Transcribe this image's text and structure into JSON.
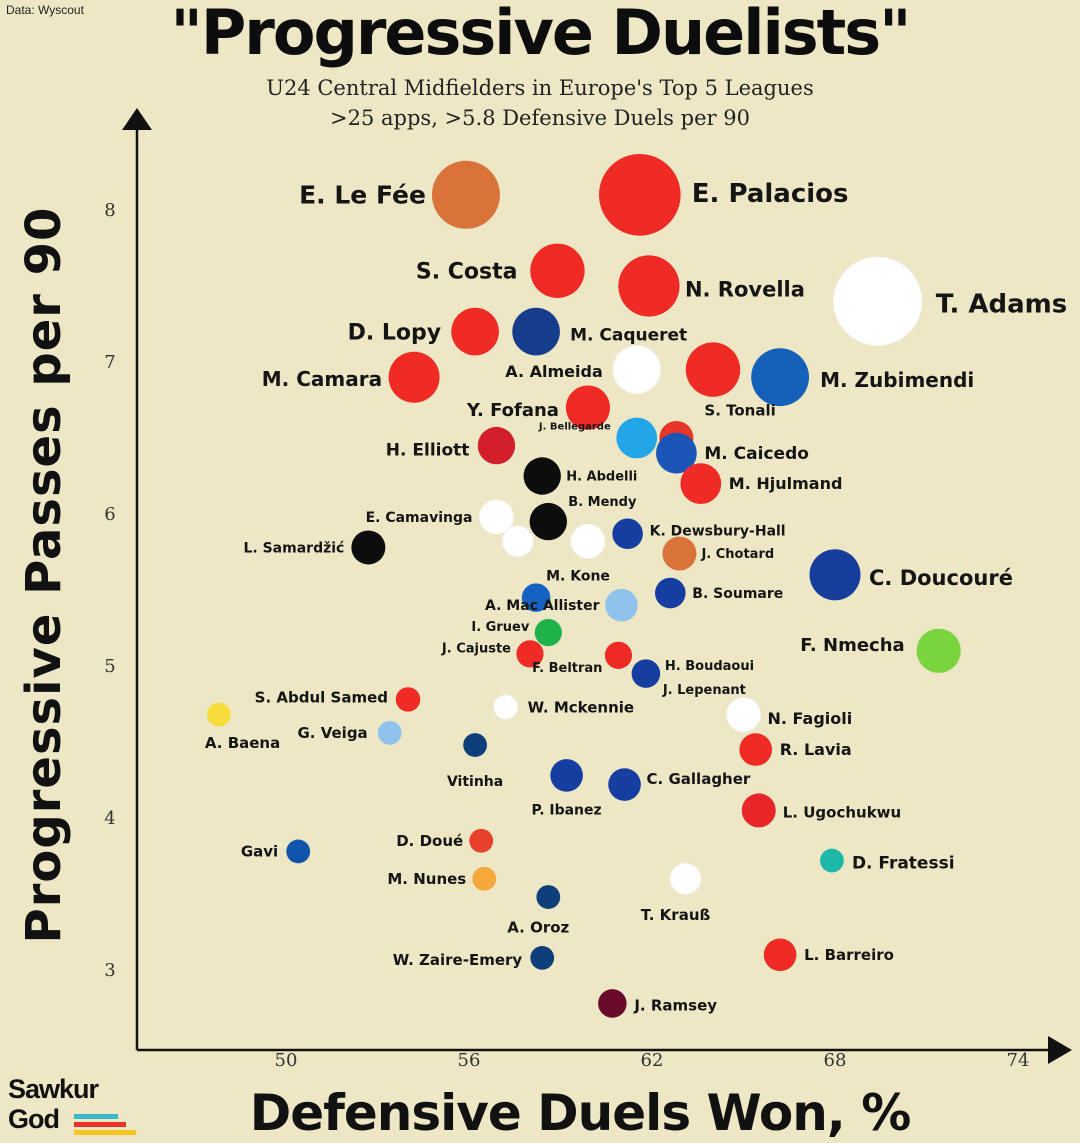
{
  "source": "Data: Wyscout",
  "logo": {
    "line1": "Sawkur",
    "line2": "God"
  },
  "chart_data": {
    "type": "scatter",
    "title": "\"Progressive Duelists\"",
    "subtitle": [
      "U24 Central Midfielders in Europe's Top 5 Leagues",
      ">25 apps, >5.8 Defensive Duels per 90"
    ],
    "xlabel": "Defensive Duels Won, %",
    "ylabel": "Progressive Passes per 90",
    "xlim": [
      45,
      74
    ],
    "ylim": [
      2.6,
      8.9
    ],
    "xticks": [
      50,
      56,
      62,
      68,
      74
    ],
    "yticks": [
      3,
      4,
      5,
      6,
      7,
      8
    ],
    "grid": false,
    "points": [
      {
        "name": "E. Le Fée",
        "x": 55.9,
        "y": 8.1,
        "color": "#d9733a",
        "size": 10
      },
      {
        "name": "E. Palacios",
        "x": 61.6,
        "y": 8.1,
        "color": "#f02a24",
        "size": 12
      },
      {
        "name": "S. Costa",
        "x": 58.9,
        "y": 7.6,
        "color": "#f02a24",
        "size": 8
      },
      {
        "name": "N. Rovella",
        "x": 61.9,
        "y": 7.5,
        "color": "#f02a24",
        "size": 9
      },
      {
        "name": "T. Adams",
        "x": 69.4,
        "y": 7.4,
        "color": "#ffffff",
        "size": 13
      },
      {
        "name": "D. Lopy",
        "x": 56.2,
        "y": 7.2,
        "color": "#f02a24",
        "size": 7
      },
      {
        "name": "M. Caqueret",
        "x": 58.2,
        "y": 7.2,
        "color": "#163c8c",
        "size": 7
      },
      {
        "name": "A. Almeida",
        "x": 61.5,
        "y": 6.95,
        "color": "#ffffff",
        "size": 7
      },
      {
        "name": "M. Camara",
        "x": 54.2,
        "y": 6.9,
        "color": "#f02a24",
        "size": 7.5
      },
      {
        "name": "",
        "x": 64.0,
        "y": 6.95,
        "color": "#f02a24",
        "size": 8
      },
      {
        "name": "M. Zubimendi",
        "x": 66.2,
        "y": 6.9,
        "color": "#1560b8",
        "size": 8.5
      },
      {
        "name": "Y. Fofana",
        "x": 59.9,
        "y": 6.7,
        "color": "#f02a24",
        "size": 6.5
      },
      {
        "name": "J. Bellegarde",
        "x": 61.5,
        "y": 6.5,
        "color": "#23a6e8",
        "size": 6
      },
      {
        "name": "S. Tonali",
        "x": 62.8,
        "y": 6.5,
        "color": "#e8352a",
        "size": 5
      },
      {
        "name": "M. Caicedo",
        "x": 62.8,
        "y": 6.4,
        "color": "#1c55b8",
        "size": 6
      },
      {
        "name": "H. Elliott",
        "x": 56.9,
        "y": 6.45,
        "color": "#d21f2a",
        "size": 5.5
      },
      {
        "name": "H. Abdelli",
        "x": 58.4,
        "y": 6.25,
        "color": "#0d0d0d",
        "size": 5.5
      },
      {
        "name": "M. Hjulmand",
        "x": 63.6,
        "y": 6.2,
        "color": "#f02a24",
        "size": 6
      },
      {
        "name": "B. Mendy",
        "x": 58.6,
        "y": 5.95,
        "color": "#0d0d0d",
        "size": 5.5
      },
      {
        "name": "E. Camavinga",
        "x": 56.9,
        "y": 5.98,
        "color": "#ffffff",
        "size": 5
      },
      {
        "name": "",
        "x": 57.6,
        "y": 5.82,
        "color": "#ffffff",
        "size": 4.5
      },
      {
        "name": "",
        "x": 59.9,
        "y": 5.82,
        "color": "#ffffff",
        "size": 5
      },
      {
        "name": "K. Dewsbury-Hall",
        "x": 61.2,
        "y": 5.87,
        "color": "#163ea0",
        "size": 4.5
      },
      {
        "name": "L. Samardžić",
        "x": 52.7,
        "y": 5.78,
        "color": "#0d0d0d",
        "size": 5
      },
      {
        "name": "J. Chotard",
        "x": 62.9,
        "y": 5.74,
        "color": "#d9733a",
        "size": 5
      },
      {
        "name": "C. Doucouré",
        "x": 68.0,
        "y": 5.6,
        "color": "#163c9c",
        "size": 7.5
      },
      {
        "name": "M. Kone",
        "x": 58.2,
        "y": 5.45,
        "color": "#1562c0",
        "size": 4.2
      },
      {
        "name": "B. Soumare",
        "x": 62.6,
        "y": 5.48,
        "color": "#163ea0",
        "size": 4.5
      },
      {
        "name": "A. Mac Allister",
        "x": 61.0,
        "y": 5.4,
        "color": "#8fc3ed",
        "size": 4.8
      },
      {
        "name": "I. Gruev",
        "x": 58.6,
        "y": 5.22,
        "color": "#1fb24a",
        "size": 4
      },
      {
        "name": "F. Beltran",
        "x": 60.9,
        "y": 5.07,
        "color": "#f02a24",
        "size": 4
      },
      {
        "name": "F. Nmecha",
        "x": 71.4,
        "y": 5.1,
        "color": "#7ad43e",
        "size": 6.5
      },
      {
        "name": "J. Cajuste",
        "x": 58.0,
        "y": 5.08,
        "color": "#f02a24",
        "size": 4
      },
      {
        "name": "H. Boudaoui",
        "x": 61.8,
        "y": 4.95,
        "color": "#163ea0",
        "size": 4.2
      },
      {
        "name": "J. Lepenant",
        "x": 61.7,
        "y": 4.95,
        "color": "#163ea0",
        "size": 0
      },
      {
        "name": "S. Abdul Samed",
        "x": 54.0,
        "y": 4.78,
        "color": "#f02a24",
        "size": 3.6
      },
      {
        "name": "W. Mckennie",
        "x": 57.2,
        "y": 4.73,
        "color": "#ffffff",
        "size": 3.5
      },
      {
        "name": "N. Fagioli",
        "x": 65.0,
        "y": 4.68,
        "color": "#ffffff",
        "size": 5
      },
      {
        "name": "A. Baena",
        "x": 47.8,
        "y": 4.68,
        "color": "#f7dd3c",
        "size": 3.5
      },
      {
        "name": "G. Veiga",
        "x": 53.4,
        "y": 4.56,
        "color": "#8fc3ed",
        "size": 3.5
      },
      {
        "name": "R. Lavia",
        "x": 65.4,
        "y": 4.45,
        "color": "#f02a24",
        "size": 4.8
      },
      {
        "name": "Vitinha",
        "x": 56.2,
        "y": 4.48,
        "color": "#0f3f7a",
        "size": 3.5
      },
      {
        "name": "P. Ibanez",
        "x": 59.2,
        "y": 4.28,
        "color": "#163ea0",
        "size": 4.8
      },
      {
        "name": "C. Gallagher",
        "x": 61.1,
        "y": 4.22,
        "color": "#163ea0",
        "size": 4.8
      },
      {
        "name": "L. Ugochukwu",
        "x": 65.5,
        "y": 4.05,
        "color": "#e8262a",
        "size": 5
      },
      {
        "name": "D. Doué",
        "x": 56.4,
        "y": 3.85,
        "color": "#e8402a",
        "size": 3.5
      },
      {
        "name": "Gavi",
        "x": 50.4,
        "y": 3.78,
        "color": "#1055aa",
        "size": 3.5
      },
      {
        "name": "D. Fratessi",
        "x": 67.9,
        "y": 3.72,
        "color": "#1eb8a8",
        "size": 3.5
      },
      {
        "name": "M. Nunes",
        "x": 56.5,
        "y": 3.6,
        "color": "#f7a83c",
        "size": 3.5
      },
      {
        "name": "T. Krauß",
        "x": 63.1,
        "y": 3.6,
        "color": "#ffffff",
        "size": 4.5
      },
      {
        "name": "A. Oroz",
        "x": 58.6,
        "y": 3.48,
        "color": "#0f3f7a",
        "size": 3.5
      },
      {
        "name": "L. Barreiro",
        "x": 66.2,
        "y": 3.1,
        "color": "#f02a24",
        "size": 4.8
      },
      {
        "name": "W. Zaire-Emery",
        "x": 58.4,
        "y": 3.08,
        "color": "#0f3f7a",
        "size": 3.5
      },
      {
        "name": "J. Ramsey",
        "x": 60.7,
        "y": 2.78,
        "color": "#6a0b2c",
        "size": 4.2
      }
    ]
  }
}
